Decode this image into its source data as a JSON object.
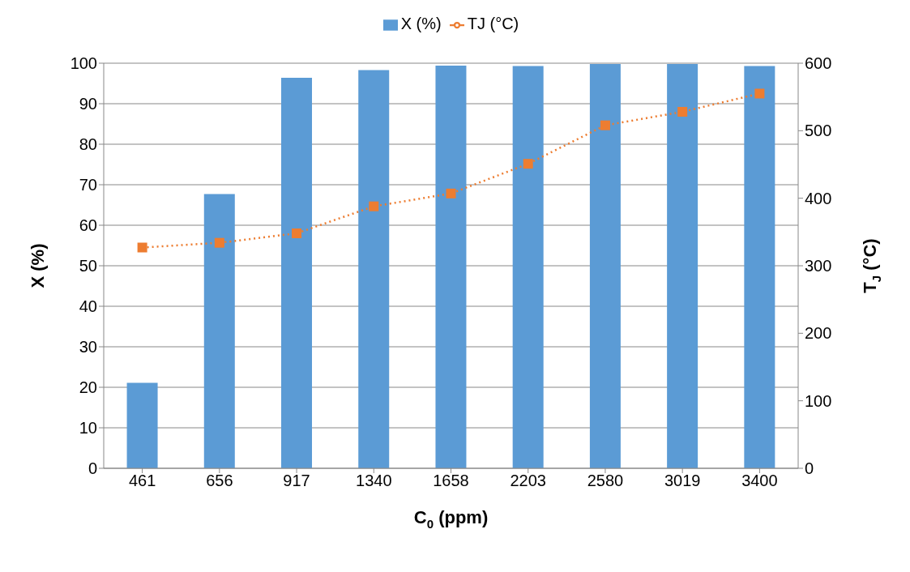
{
  "chart_data": {
    "type": "bar",
    "xlabel": "C$_{0}$ (ppm)",
    "ylabel": "X (%)",
    "y2label": "T$_{J}$ (°C)",
    "categories": [
      "461",
      "656",
      "917",
      "1340",
      "1658",
      "2203",
      "2580",
      "3019",
      "3400"
    ],
    "series": [
      {
        "name": "X (%)",
        "color": "#5b9bd5",
        "values": [
          21.1,
          67.7,
          96.4,
          98.3,
          99.4,
          99.3,
          99.8,
          99.8,
          99.3
        ]
      },
      {
        "name": "TJ (°C)",
        "type": "line",
        "axis": "y2",
        "color": "#ed7d31",
        "marker": "square",
        "line_style": "dotted",
        "values": [
          327,
          334,
          348,
          388,
          407,
          451,
          508,
          528,
          555
        ]
      }
    ],
    "ylim": [
      0,
      100
    ],
    "yticks": [
      0,
      10,
      20,
      30,
      40,
      50,
      60,
      70,
      80,
      90,
      100
    ],
    "y2lim": [
      0,
      600
    ],
    "y2ticks": [
      0,
      100,
      200,
      300,
      400,
      500,
      600
    ],
    "grid": "y",
    "legend": "top"
  }
}
